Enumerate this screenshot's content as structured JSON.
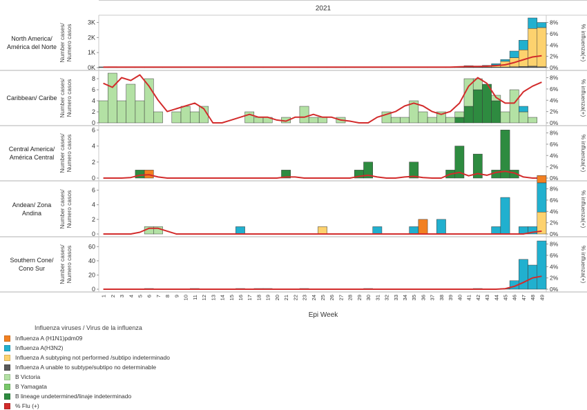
{
  "chart_data": {
    "type": "bar",
    "year_label": "2021",
    "xlabel": "Epi Week",
    "weeks": [
      1,
      2,
      3,
      4,
      5,
      6,
      7,
      8,
      9,
      10,
      11,
      12,
      13,
      14,
      15,
      16,
      17,
      18,
      19,
      20,
      21,
      22,
      23,
      24,
      25,
      26,
      27,
      28,
      29,
      30,
      31,
      32,
      33,
      34,
      35,
      36,
      37,
      38,
      39,
      40,
      41,
      42,
      43,
      44,
      45,
      46,
      47,
      48,
      49
    ],
    "left_ylabel": "Number cases/\nNumero casos",
    "right_ylabel": "% influenza(+)",
    "right_ticks": [
      "0%",
      "2%",
      "4%",
      "6%",
      "8%"
    ],
    "colors": {
      "h1n1": "#f28021",
      "h3n2": "#21b0cf",
      "a_not_performed": "#fdd26e",
      "a_unable": "#595959",
      "b_victoria": "#b3e1a4",
      "b_yamagata": "#78c86a",
      "b_undetermined": "#2e8b40",
      "pct_flu": "#d22b2b"
    },
    "legend": {
      "title": "Influenza viruses / Virus de la influenza",
      "items": [
        {
          "key": "h1n1",
          "label": "Influenza A (H1N1)pdm09"
        },
        {
          "key": "h3n2",
          "label": "Influenza A(H3N2)"
        },
        {
          "key": "a_not_performed",
          "label": "Influenza A subtyping not performed /subtipo indeterminado"
        },
        {
          "key": "a_unable",
          "label": "Influenza A unable to subtype/subtipo no determinable"
        },
        {
          "key": "b_victoria",
          "label": "B Victoria"
        },
        {
          "key": "b_yamagata",
          "label": "B Yamagata"
        },
        {
          "key": "b_undetermined",
          "label": "B lineage undetermined/linaje indeterminado"
        },
        {
          "key": "pct_flu",
          "label": "% Flu (+)"
        }
      ]
    },
    "panels": [
      {
        "name": "North America/\nAmérica del Norte",
        "ymax": 3300,
        "yticks": [
          0,
          1000,
          2000,
          3000
        ],
        "ytick_labels": [
          "0K",
          "1K",
          "2K",
          "3K"
        ],
        "series": {
          "a_unable": [
            50,
            60,
            50,
            40,
            40,
            40,
            40,
            20,
            20,
            20,
            30,
            20,
            20,
            20,
            10,
            10,
            10,
            10,
            10,
            20,
            10,
            10,
            10,
            10,
            10,
            10,
            10,
            10,
            10,
            10,
            10,
            10,
            10,
            10,
            10,
            10,
            10,
            10,
            10,
            20,
            40,
            30,
            30,
            30,
            40,
            60,
            80,
            100,
            60
          ],
          "b_undetermined": [
            0,
            0,
            0,
            0,
            0,
            0,
            0,
            0,
            0,
            0,
            0,
            0,
            0,
            0,
            0,
            0,
            0,
            0,
            0,
            0,
            0,
            0,
            0,
            0,
            0,
            0,
            0,
            0,
            0,
            0,
            0,
            0,
            0,
            0,
            0,
            0,
            0,
            0,
            0,
            20,
            40,
            20,
            0,
            0,
            0,
            0,
            0,
            0,
            0
          ],
          "a_not_performed": [
            0,
            0,
            0,
            0,
            0,
            0,
            0,
            0,
            0,
            0,
            0,
            0,
            0,
            0,
            0,
            0,
            0,
            0,
            0,
            0,
            0,
            0,
            0,
            0,
            0,
            0,
            0,
            0,
            0,
            0,
            0,
            0,
            0,
            0,
            0,
            0,
            0,
            0,
            0,
            0,
            0,
            0,
            80,
            150,
            380,
            600,
            1100,
            2500,
            2600
          ],
          "h3n2": [
            0,
            0,
            0,
            0,
            0,
            0,
            0,
            0,
            0,
            0,
            0,
            0,
            0,
            0,
            0,
            0,
            0,
            0,
            0,
            0,
            0,
            0,
            0,
            0,
            0,
            0,
            0,
            0,
            0,
            0,
            0,
            0,
            0,
            0,
            0,
            0,
            0,
            0,
            0,
            30,
            50,
            60,
            40,
            80,
            120,
            440,
            640,
            700,
            340
          ]
        },
        "pct": [
          0.1,
          0.1,
          0.1,
          0.1,
          0.1,
          0.1,
          0.1,
          0.1,
          0.1,
          0.1,
          0.1,
          0.1,
          0.1,
          0.1,
          0.1,
          0.1,
          0.1,
          0.1,
          0.1,
          0.1,
          0.1,
          0.1,
          0.1,
          0.1,
          0.1,
          0.1,
          0.1,
          0.1,
          0.1,
          0.1,
          0.1,
          0.1,
          0.1,
          0.1,
          0.1,
          0.1,
          0.1,
          0.1,
          0.1,
          0.15,
          0.2,
          0.2,
          0.25,
          0.35,
          0.5,
          0.9,
          1.4,
          1.9,
          2.1
        ]
      },
      {
        "name": "Caribbean/ Caribe",
        "ymax": 9,
        "yticks": [
          0,
          2,
          4,
          6,
          8
        ],
        "ytick_labels": [
          "0",
          "2",
          "4",
          "6",
          "8"
        ],
        "series": {
          "b_undetermined": [
            0,
            0,
            0,
            0,
            0,
            0,
            0,
            0,
            0,
            0,
            0,
            0,
            0,
            0,
            0,
            0,
            0,
            0,
            0,
            0,
            0,
            0,
            0,
            0,
            0,
            0,
            0,
            0,
            0,
            0,
            0,
            0,
            0,
            0,
            0,
            0,
            0,
            0,
            0,
            1,
            3,
            6,
            7,
            4,
            0,
            0,
            0,
            0,
            0
          ],
          "b_victoria": [
            4,
            9,
            4,
            7,
            4,
            8,
            2,
            0,
            2,
            3,
            2,
            3,
            0,
            0,
            0,
            0,
            2,
            1,
            1,
            0,
            1,
            0,
            3,
            1,
            1,
            0,
            1,
            0,
            0,
            0,
            0,
            2,
            1,
            1,
            4,
            2,
            1,
            2,
            1,
            1,
            5,
            2,
            0,
            1,
            2,
            6,
            2,
            1,
            0
          ],
          "h3n2": [
            0,
            0,
            0,
            0,
            0,
            0,
            0,
            0,
            0,
            0,
            0,
            0,
            0,
            0,
            0,
            0,
            0,
            0,
            0,
            0,
            0,
            0,
            0,
            0,
            0,
            0,
            0,
            0,
            0,
            0,
            0,
            0,
            0,
            0,
            0,
            0,
            0,
            0,
            0,
            0,
            0,
            0,
            0,
            0,
            0,
            0,
            1,
            0,
            0
          ]
        },
        "pct": [
          7,
          6.3,
          8,
          7.5,
          8.5,
          6.5,
          4,
          2,
          2.5,
          3,
          3.5,
          2.5,
          0,
          0,
          0.5,
          1,
          1.5,
          1,
          1,
          0.5,
          0.3,
          1,
          1,
          1.5,
          1,
          1,
          0.5,
          0.3,
          0,
          0,
          1,
          1.5,
          2,
          3,
          3.5,
          3,
          2,
          1.5,
          2,
          3.5,
          6.5,
          8,
          7,
          4.5,
          3.5,
          3.5,
          5.5,
          6.5,
          7.2
        ]
      },
      {
        "name": "Central America/\nAmérica Central",
        "ymax": 6.2,
        "yticks": [
          0,
          2,
          4,
          6
        ],
        "ytick_labels": [
          "0",
          "2",
          "4",
          "6"
        ],
        "series": {
          "b_undetermined": [
            0,
            0,
            0,
            0,
            1,
            0,
            0,
            0,
            0,
            0,
            0,
            0,
            0,
            0,
            0,
            0,
            0,
            0,
            0,
            0,
            1,
            0,
            0,
            0,
            0,
            0,
            0,
            0,
            1,
            2,
            0,
            0,
            0,
            0,
            2,
            0,
            0,
            0,
            1,
            4,
            0,
            3,
            0,
            1,
            6,
            1,
            0,
            0,
            0
          ],
          "h1n1": [
            0,
            0,
            0,
            0,
            0,
            1,
            0,
            0,
            0,
            0,
            0,
            0,
            0,
            0,
            0,
            0,
            0,
            0,
            0,
            0,
            0,
            0,
            0,
            0,
            0,
            0,
            0,
            0,
            0,
            0,
            0,
            0,
            0,
            0,
            0,
            0,
            0,
            0,
            0,
            0,
            0,
            0,
            0,
            0,
            0,
            0,
            0,
            0,
            0
          ]
        },
        "pct": [
          0,
          0,
          0,
          0.1,
          0.5,
          0.6,
          0.2,
          0,
          0,
          0,
          0,
          0,
          0,
          0,
          0,
          0,
          0,
          0,
          0,
          0,
          0.2,
          0.2,
          0,
          0,
          0,
          0,
          0,
          0,
          0.3,
          0.5,
          0.2,
          0,
          0,
          0.2,
          0.3,
          0.1,
          0,
          0,
          0.7,
          1,
          0.4,
          0.8,
          0.5,
          1,
          1.2,
          0.9,
          0.2,
          0,
          0
        ]
      },
      {
        "name": "Andean/  Zona\nAndina",
        "ymax": 6.8,
        "yticks": [
          0,
          2,
          4,
          6
        ],
        "ytick_labels": [
          "0",
          "2",
          "4",
          "6"
        ],
        "series": {
          "b_victoria": [
            0,
            0,
            0,
            0,
            0,
            1,
            1,
            0,
            0,
            0,
            0,
            0,
            0,
            0,
            0,
            0,
            0,
            0,
            0,
            0,
            0,
            0,
            0,
            0,
            0,
            0,
            0,
            0,
            0,
            0,
            0,
            0,
            0,
            0,
            0,
            0,
            0,
            0,
            0,
            0,
            0,
            0,
            0,
            0,
            0,
            0,
            0,
            0,
            0
          ],
          "a_not_performed": [
            0,
            0,
            0,
            0,
            0,
            0,
            0,
            0,
            0,
            0,
            0,
            0,
            0,
            0,
            0,
            0,
            0,
            0,
            0,
            0,
            0,
            0,
            0,
            0,
            1,
            0,
            0,
            0,
            0,
            0,
            0,
            0,
            0,
            0,
            0,
            0,
            0,
            0,
            0,
            0,
            0,
            0,
            0,
            0,
            0,
            0,
            0,
            0,
            3
          ],
          "h3n2": [
            0,
            0,
            0,
            0,
            0,
            0,
            0,
            0,
            0,
            0,
            0,
            0,
            0,
            0,
            0,
            1,
            0,
            0,
            0,
            0,
            0,
            0,
            0,
            0,
            0,
            0,
            0,
            0,
            0,
            0,
            1,
            0,
            0,
            0,
            1,
            0,
            0,
            2,
            0,
            0,
            0,
            0,
            0,
            1,
            5,
            0,
            1,
            1,
            4
          ],
          "h1n1": [
            0,
            0,
            0,
            0,
            0,
            0,
            0,
            0,
            0,
            0,
            0,
            0,
            0,
            0,
            0,
            0,
            0,
            0,
            0,
            0,
            0,
            0,
            0,
            0,
            0,
            0,
            0,
            0,
            0,
            0,
            0,
            0,
            0,
            0,
            0,
            2,
            0,
            0,
            0,
            0,
            0,
            0,
            0,
            0,
            0,
            0,
            0,
            0,
            1
          ]
        },
        "pct": [
          0,
          0,
          0,
          0,
          0.3,
          1,
          1,
          0.5,
          0,
          0,
          0,
          0,
          0,
          0,
          0,
          0,
          0,
          0,
          0,
          0,
          0,
          0,
          0,
          0,
          0,
          0,
          0,
          0,
          0,
          0,
          0,
          0,
          0,
          0,
          0,
          0,
          0,
          0,
          0,
          0,
          0,
          0,
          0,
          0,
          0,
          0,
          0,
          0.3,
          0.5
        ]
      },
      {
        "name": "Southern Cone/\nCono Sur",
        "ymax": 70,
        "yticks": [
          0,
          20,
          40,
          60
        ],
        "ytick_labels": [
          "0",
          "20",
          "40",
          "60"
        ],
        "series": {
          "a_unable": [
            0,
            0,
            0,
            0,
            0,
            1,
            0,
            0,
            0,
            0,
            1,
            0,
            0,
            0,
            0,
            1,
            0,
            1,
            1,
            0,
            0,
            0,
            1,
            0,
            0,
            0,
            0,
            0,
            0,
            1,
            0,
            0,
            0,
            0,
            0,
            0,
            0,
            0,
            0,
            0,
            0,
            1,
            0,
            0,
            0,
            0,
            0,
            0,
            0
          ],
          "h3n2": [
            0,
            0,
            0,
            0,
            0,
            0,
            0,
            0,
            0,
            0,
            0,
            0,
            0,
            0,
            0,
            0,
            0,
            0,
            0,
            0,
            0,
            0,
            0,
            0,
            0,
            0,
            0,
            0,
            0,
            0,
            0,
            0,
            0,
            0,
            0,
            0,
            0,
            0,
            0,
            0,
            0,
            0,
            0,
            0,
            1,
            12,
            42,
            34,
            68
          ]
        },
        "pct": [
          0,
          0,
          0,
          0,
          0,
          0,
          0,
          0,
          0,
          0,
          0,
          0,
          0,
          0,
          0,
          0,
          0,
          0,
          0,
          0,
          0,
          0,
          0,
          0,
          0,
          0,
          0,
          0,
          0,
          0,
          0,
          0,
          0,
          0,
          0,
          0,
          0,
          0,
          0,
          0,
          0,
          0,
          0,
          0,
          0.1,
          0.5,
          1.2,
          2,
          2.3
        ]
      }
    ]
  }
}
